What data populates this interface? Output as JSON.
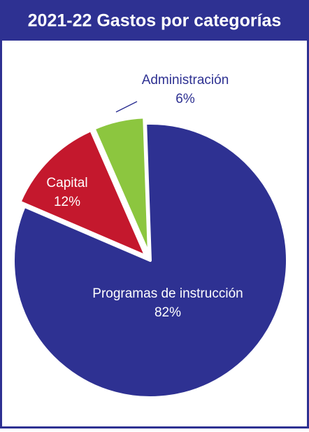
{
  "chart_data": {
    "type": "pie",
    "title": "2021-22 Gastos por categorías",
    "categories": [
      "Programas de instrucción",
      "Capital",
      "Administración"
    ],
    "values": [
      82,
      12,
      6
    ],
    "value_labels": [
      "82%",
      "12%",
      "6%"
    ],
    "colors": [
      "#2e3192",
      "#c4182d",
      "#8cc63f"
    ]
  }
}
